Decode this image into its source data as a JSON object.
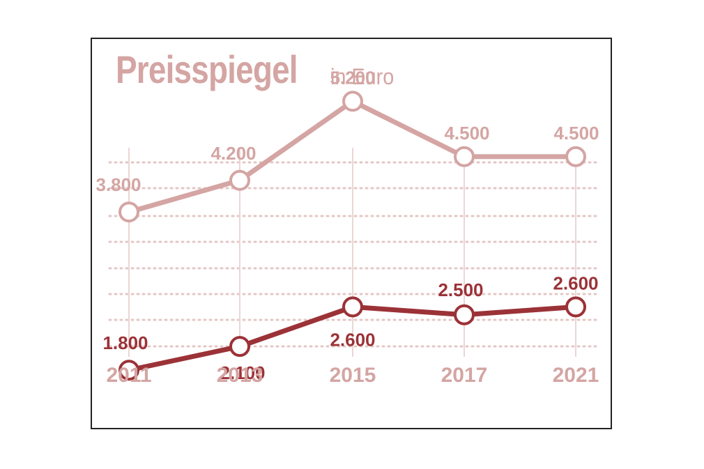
{
  "chart_data": {
    "type": "line",
    "title": "Preisspiegel",
    "subtitle": "in Euro",
    "categories": [
      "2011",
      "2013",
      "2015",
      "2017",
      "2021"
    ],
    "series": [
      {
        "values": [
          3800,
          4200,
          5200,
          4500,
          4500
        ],
        "labels": [
          "3.800",
          "4.200",
          "5.200",
          "4.500",
          "4.500"
        ],
        "color": "#d4a5a3"
      },
      {
        "values": [
          1800,
          2100,
          2600,
          2500,
          2600
        ],
        "labels": [
          "1.800",
          "2.100",
          "2.600",
          "2.500",
          "2.600"
        ],
        "color": "#9b3237"
      }
    ],
    "grid": true
  }
}
